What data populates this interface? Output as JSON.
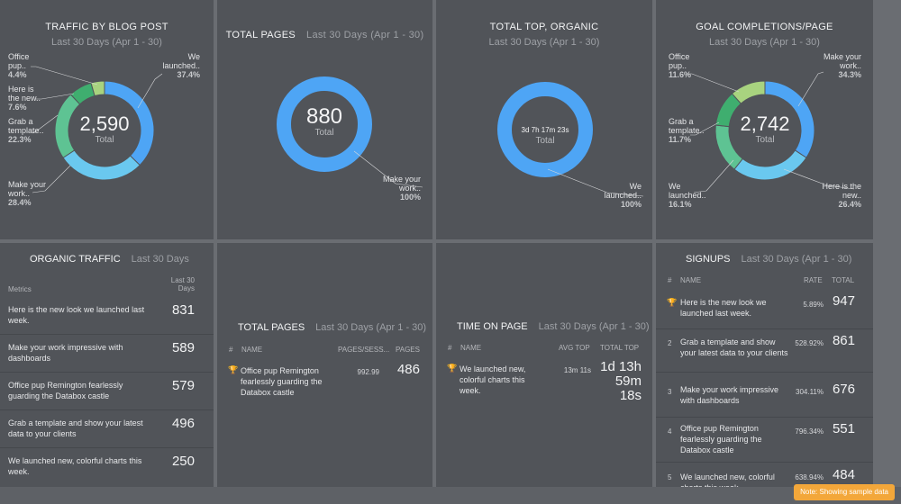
{
  "traffic": {
    "title": "TRAFFIC BY BLOG POST",
    "subtitle": "Last 30 Days (Apr 1 - 30)",
    "total": "2,590",
    "total_label": "Total",
    "slices": [
      {
        "label": "We launched..",
        "pct": "37.4%",
        "value": 37.4,
        "color": "#4ea5f5"
      },
      {
        "label": "Make your work..",
        "pct": "28.4%",
        "value": 28.4,
        "color": "#6ac8ef"
      },
      {
        "label": "Grab a template..",
        "pct": "22.3%",
        "value": 22.3,
        "color": "#5ec393"
      },
      {
        "label": "Here is the new..",
        "pct": "7.6%",
        "value": 7.6,
        "color": "#3fae6f"
      },
      {
        "label": "Office pup..",
        "pct": "4.4%",
        "value": 4.4,
        "color": "#a8d37f"
      }
    ]
  },
  "total_pages_donut": {
    "title": "TOTAL PAGES",
    "subtitle": "Last 30 Days (Apr 1 - 30)",
    "total": "880",
    "total_label": "Total",
    "slice_label": "Make your work..",
    "slice_pct": "100%",
    "color": "#4ea5f5"
  },
  "total_top": {
    "title": "TOTAL TOP, ORGANIC",
    "subtitle": "Last 30 Days (Apr 1 - 30)",
    "total": "3d 7h 17m 23s",
    "total_label": "Total",
    "slice_label": "We launched..",
    "slice_pct": "100%",
    "color": "#4ea5f5"
  },
  "goal": {
    "title": "GOAL COMPLETIONS/PAGE",
    "subtitle": "Last 30 Days (Apr 1 - 30)",
    "total": "2,742",
    "total_label": "Total",
    "slices": [
      {
        "label": "Make your work..",
        "pct": "34.3%",
        "value": 34.3,
        "color": "#4ea5f5"
      },
      {
        "label": "Here is the new..",
        "pct": "26.4%",
        "value": 26.4,
        "color": "#6ac8ef"
      },
      {
        "label": "We launched..",
        "pct": "16.1%",
        "value": 16.1,
        "color": "#5ec393"
      },
      {
        "label": "Grab a template..",
        "pct": "11.7%",
        "value": 11.7,
        "color": "#3fae6f"
      },
      {
        "label": "Office pup..",
        "pct": "11.6%",
        "value": 11.6,
        "color": "#a8d37f"
      }
    ]
  },
  "organic": {
    "title": "ORGANIC TRAFFIC",
    "subtitle": "Last 30 Days",
    "col_metrics": "Metrics",
    "col_value": "Last 30 Days",
    "rows": [
      {
        "text": "Here is the new look we launched last week.",
        "value": "831"
      },
      {
        "text": "Make your work impressive with dashboards",
        "value": "589"
      },
      {
        "text": "Office pup Remington fearlessly guarding the Databox castle",
        "value": "579"
      },
      {
        "text": "Grab a template and show your latest data to your clients",
        "value": "496"
      },
      {
        "text": "We launched new, colorful charts this week.",
        "value": "250"
      }
    ]
  },
  "pages_table": {
    "title": "TOTAL PAGES",
    "subtitle": "Last 30 Days (Apr 1 - 30)",
    "col_hash": "#",
    "col_name": "NAME",
    "col_a": "PAGES/SESS...",
    "col_b": "PAGES",
    "rows": [
      {
        "text": "Office pup Remington fearlessly guarding the Databox castle",
        "a": "992.99",
        "b": "486"
      }
    ]
  },
  "time_on_page": {
    "title": "TIME ON PAGE",
    "subtitle": "Last 30 Days (Apr 1 - 30)",
    "col_hash": "#",
    "col_name": "NAME",
    "col_a": "AVG TOP",
    "col_b": "TOTAL TOP",
    "rows": [
      {
        "text": "We launched new, colorful charts this week.",
        "a": "13m 11s",
        "b1": "1d 13h",
        "b2": "59m",
        "b3": "18s"
      }
    ]
  },
  "signups": {
    "title": "SIGNUPS",
    "subtitle": "Last 30 Days (Apr 1 - 30)",
    "col_hash": "#",
    "col_name": "NAME",
    "col_rate": "RATE",
    "col_total": "TOTAL",
    "rows": [
      {
        "num": "",
        "text": "Here is the new look we launched last week.",
        "rate": "5.89%",
        "total": "947"
      },
      {
        "num": "2",
        "text": "Grab a template and show your latest data to your clients",
        "rate": "528.92%",
        "total": "861"
      },
      {
        "num": "3",
        "text": "Make your work impressive with dashboards",
        "rate": "304.11%",
        "total": "676"
      },
      {
        "num": "4",
        "text": "Office pup Remington fearlessly guarding the Databox castle",
        "rate": "796.34%",
        "total": "551"
      },
      {
        "num": "5",
        "text": "We launched new, colorful charts this week.",
        "rate": "638.94%",
        "total": "484"
      }
    ]
  },
  "sample_badge": "Note: Showing sample data"
}
